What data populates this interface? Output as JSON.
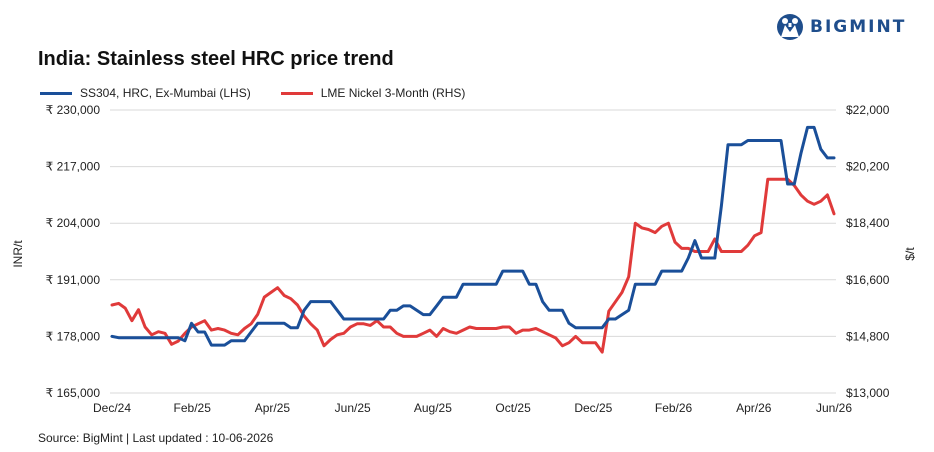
{
  "brand": {
    "name": "BIGMINT",
    "colors": {
      "blue": "#1f4e8c"
    }
  },
  "source": "Source: BigMint | Last updated : 10-06-2026",
  "chart_data": {
    "type": "line",
    "title": "India: Stainless steel HRC price trend",
    "ylabel_left": "INR/t",
    "ylabel_right": "$/t",
    "ylim_left": [
      165000,
      230000
    ],
    "ylim_right": [
      13000,
      22000
    ],
    "y_ticks_left": [
      "₹ 165,000",
      "₹ 178,000",
      "₹ 191,000",
      "₹ 204,000",
      "₹ 217,000",
      "₹ 230,000"
    ],
    "y_ticks_right": [
      "$13,000",
      "$14,800",
      "$16,600",
      "$18,400",
      "$20,200",
      "$22,000"
    ],
    "x_ticks": [
      "Dec/24",
      "Feb/25",
      "Apr/25",
      "Jun/25",
      "Aug/25",
      "Oct/25",
      "Dec/25",
      "Feb/26",
      "Apr/26",
      "Jun/26"
    ],
    "grid": "horizontal",
    "legend_position": "top-left",
    "series": [
      {
        "name": "SS304, HRC, Ex-Mumbai (LHS)",
        "color": "#1a4f99",
        "axis": "left",
        "values": [
          178000,
          177700,
          177700,
          177700,
          177700,
          177700,
          177700,
          177700,
          177700,
          177700,
          177700,
          177000,
          181000,
          179000,
          179000,
          176000,
          176000,
          176000,
          177000,
          177000,
          177000,
          179000,
          181000,
          181000,
          181000,
          181000,
          181000,
          180000,
          180000,
          184000,
          186000,
          186000,
          186000,
          186000,
          184000,
          182000,
          182000,
          182000,
          182000,
          182000,
          182000,
          182000,
          184000,
          184000,
          185000,
          185000,
          184000,
          183000,
          183000,
          185000,
          187000,
          187000,
          187000,
          190000,
          190000,
          190000,
          190000,
          190000,
          190000,
          193000,
          193000,
          193000,
          193000,
          190000,
          190000,
          186000,
          184000,
          184000,
          184000,
          181000,
          180000,
          180000,
          180000,
          180000,
          180000,
          182000,
          182000,
          183000,
          184000,
          190000,
          190000,
          190000,
          190000,
          193000,
          193000,
          193000,
          193000,
          196000,
          200000,
          196000,
          196000,
          196000,
          208000,
          222000,
          222000,
          222000,
          223000,
          223000,
          223000,
          223000,
          223000,
          223000,
          213000,
          213000,
          220000,
          226000,
          226000,
          221000,
          219000,
          219000
        ]
      },
      {
        "name": "LME Nickel 3-Month (RHS)",
        "color": "#e03a3a",
        "axis": "right",
        "values": [
          15800,
          15850,
          15700,
          15300,
          15650,
          15100,
          14850,
          14950,
          14900,
          14550,
          14650,
          14900,
          15100,
          15200,
          15300,
          15000,
          15050,
          15000,
          14900,
          14850,
          15050,
          15200,
          15500,
          16050,
          16200,
          16350,
          16100,
          16000,
          15800,
          15450,
          15200,
          15000,
          14500,
          14700,
          14850,
          14900,
          15100,
          15200,
          15200,
          15150,
          15300,
          15100,
          15100,
          14900,
          14800,
          14800,
          14800,
          14900,
          15000,
          14800,
          15050,
          14950,
          14900,
          15000,
          15100,
          15050,
          15050,
          15050,
          15050,
          15100,
          15100,
          14900,
          15000,
          15000,
          15050,
          14950,
          14850,
          14750,
          14500,
          14600,
          14800,
          14600,
          14600,
          14600,
          14300,
          15600,
          15900,
          16200,
          16700,
          18400,
          18250,
          18200,
          18100,
          18300,
          18400,
          17800,
          17600,
          17600,
          17500,
          17500,
          17500,
          17900,
          17500,
          17500,
          17500,
          17500,
          17700,
          18000,
          18100,
          19800,
          19800,
          19800,
          19800,
          19600,
          19300,
          19100,
          19000,
          19100,
          19300,
          18700
        ]
      }
    ]
  }
}
